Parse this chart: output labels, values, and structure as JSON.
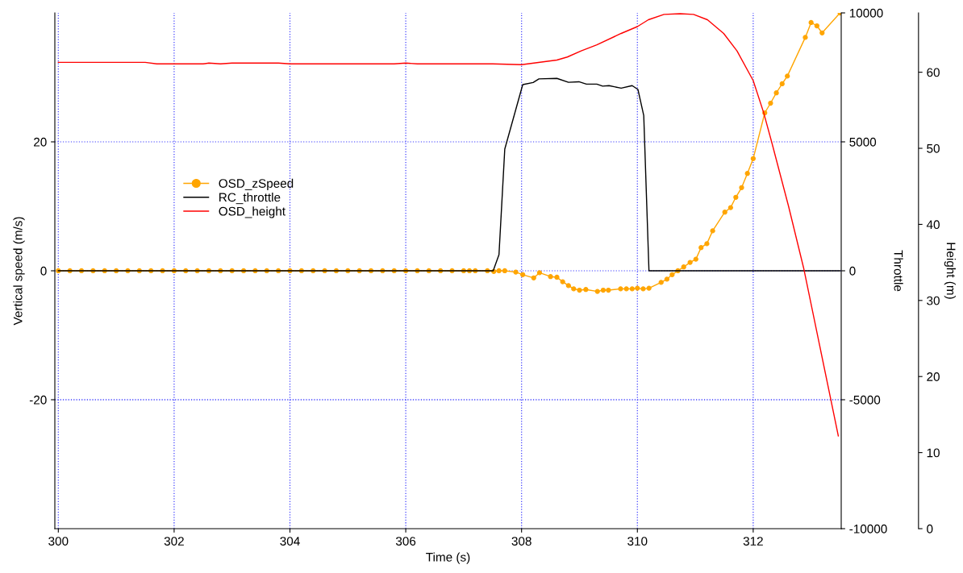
{
  "chart_data": {
    "type": "line",
    "xlabel": "Time (s)",
    "ylabel": "Vertical speed (m/s)",
    "y2label": "Throttle",
    "y3label": "Height (m)",
    "xlim": [
      299.94,
      313.52
    ],
    "xticks": [
      300,
      302,
      304,
      306,
      308,
      310,
      312
    ],
    "ylim": [
      -40,
      40
    ],
    "yticks": [
      -20,
      0,
      20
    ],
    "y2lim": [
      -10000,
      10000
    ],
    "y2ticks": [
      -10000,
      -5000,
      0,
      5000,
      10000
    ],
    "y3lim": [
      0,
      67.8
    ],
    "y3ticks": [
      0,
      10,
      20,
      30,
      40,
      50,
      60
    ],
    "grid": true,
    "legend": "upper left",
    "series": [
      {
        "name": "OSD_zSpeed",
        "color": "#ffa500",
        "marker": "circle",
        "axis": "y",
        "x": [
          300.0,
          300.2,
          300.4,
          300.6,
          300.8,
          301.0,
          301.2,
          301.4,
          301.6,
          301.8,
          302.0,
          302.2,
          302.4,
          302.6,
          302.8,
          303.0,
          303.2,
          303.4,
          303.6,
          303.8,
          304.0,
          304.2,
          304.4,
          304.6,
          304.8,
          305.0,
          305.2,
          305.4,
          305.6,
          305.8,
          306.0,
          306.2,
          306.4,
          306.6,
          306.8,
          307.0,
          307.1,
          307.2,
          307.41,
          307.52,
          307.61,
          307.71,
          307.9,
          308.02,
          308.21,
          308.31,
          308.5,
          308.61,
          308.71,
          308.81,
          308.9,
          309.0,
          309.11,
          309.31,
          309.41,
          309.5,
          309.71,
          309.81,
          309.91,
          310.0,
          310.1,
          310.2,
          310.41,
          310.51,
          310.6,
          310.7,
          310.8,
          310.91,
          311.01,
          311.1,
          311.2,
          311.3,
          311.51,
          311.61,
          311.7,
          311.8,
          311.9,
          312.0,
          312.2,
          312.3,
          312.4,
          312.5,
          312.59,
          312.9,
          313.0,
          313.1,
          313.19,
          313.5
        ],
        "values": [
          0,
          0,
          0,
          0,
          0,
          0,
          0,
          0,
          0,
          0,
          0,
          0,
          0,
          0,
          0,
          0,
          0,
          0,
          0,
          0,
          0,
          0,
          0,
          0,
          0,
          0,
          0,
          0,
          0,
          0,
          0,
          0,
          0,
          0,
          0,
          0,
          0,
          0,
          0,
          -0.1,
          0,
          0,
          -0.2,
          -0.6,
          -1.1,
          -0.3,
          -0.9,
          -1.0,
          -1.7,
          -2.3,
          -2.8,
          -3.0,
          -2.9,
          -3.2,
          -3.0,
          -3.0,
          -2.8,
          -2.8,
          -2.8,
          -2.7,
          -2.8,
          -2.7,
          -1.8,
          -1.3,
          -0.6,
          0,
          0.6,
          1.3,
          1.8,
          3.6,
          4.2,
          6.2,
          9.1,
          9.8,
          11.4,
          12.9,
          15.1,
          17.4,
          24.5,
          26.0,
          27.6,
          29.0,
          30.2,
          36.2,
          38.5,
          38.0,
          36.9,
          40.0
        ]
      },
      {
        "name": "RC_throttle",
        "color": "#000000",
        "marker": "none",
        "axis": "y2",
        "x": [
          300.0,
          307.51,
          307.61,
          307.71,
          308.02,
          308.2,
          308.3,
          308.61,
          308.81,
          308.99,
          309.12,
          309.3,
          309.4,
          309.51,
          309.72,
          309.91,
          310.01,
          310.11,
          310.2,
          313.5
        ],
        "values": [
          0,
          0,
          625,
          4720,
          7220,
          7300,
          7440,
          7460,
          7310,
          7330,
          7240,
          7240,
          7160,
          7180,
          7080,
          7180,
          7030,
          6020,
          0,
          0
        ]
      },
      {
        "name": "OSD_height",
        "color": "#ff0000",
        "marker": "none",
        "axis": "y3",
        "x": [
          300.0,
          301.5,
          301.7,
          302.5,
          302.6,
          302.8,
          303.0,
          303.8,
          304.0,
          305.8,
          306.0,
          306.2,
          307.5,
          308.0,
          308.61,
          308.79,
          309.03,
          309.3,
          309.72,
          310.0,
          310.19,
          310.46,
          310.74,
          310.97,
          311.21,
          311.49,
          311.72,
          312.0,
          312.18,
          312.32,
          312.61,
          312.87,
          313.47
        ],
        "values": [
          61.3,
          61.3,
          61.1,
          61.1,
          61.2,
          61.1,
          61.2,
          61.2,
          61.1,
          61.1,
          61.2,
          61.1,
          61.1,
          61.0,
          61.6,
          62.0,
          62.8,
          63.6,
          65.1,
          66.0,
          66.9,
          67.6,
          67.7,
          67.6,
          66.9,
          65.1,
          62.8,
          58.9,
          54.7,
          50.8,
          42.4,
          34.3,
          12.2
        ]
      }
    ]
  }
}
